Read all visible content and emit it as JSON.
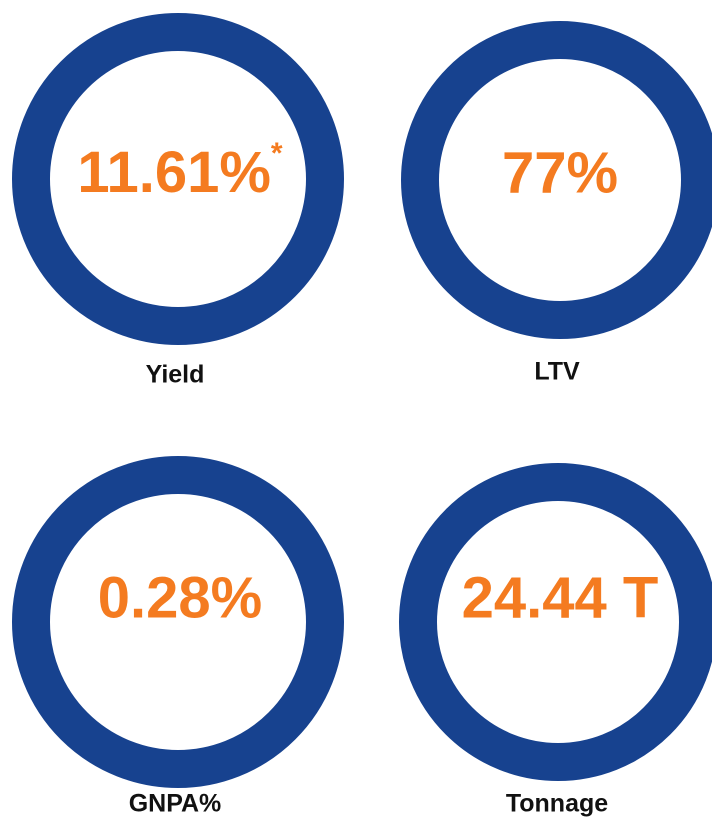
{
  "tiles": [
    {
      "value": "11.61%",
      "note": "*",
      "label": "Yield"
    },
    {
      "value": "77%",
      "label": "LTV"
    },
    {
      "value": "0.28%",
      "label": "GNPA%"
    },
    {
      "value": "24.44 T",
      "label": "Tonnage"
    }
  ]
}
